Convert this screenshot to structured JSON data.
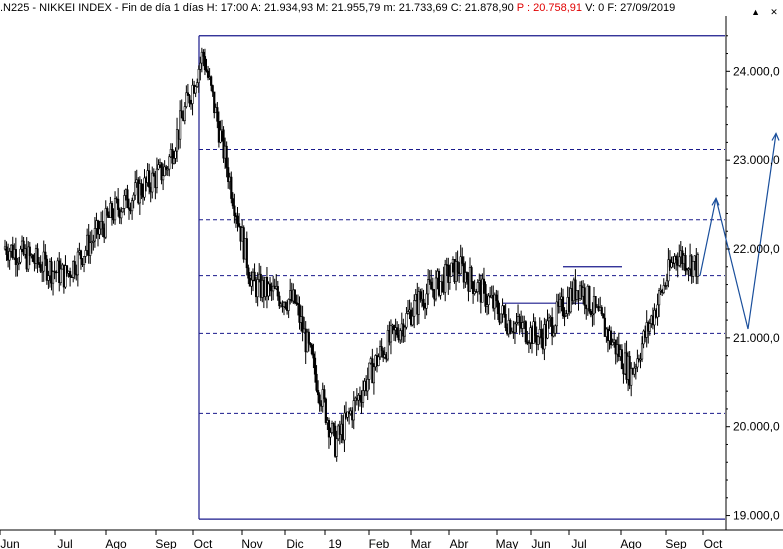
{
  "header": {
    "symbol": ".N225 - NIKKEI INDEX - Fin de día 1 días",
    "high": "H: 17:00",
    "open": "A: 21.934,93",
    "max": "M: 21.955,79",
    "min": "m: 21.733,69",
    "close": "C: 21.878,90",
    "p": "P : 20.758,91",
    "v": "V: 0",
    "date": "F: 27/09/2019"
  },
  "window_buttons": {
    "minimize": "▲",
    "close": "✕"
  },
  "colors": {
    "box": "#1a1a8c",
    "level": "#1a1a8c",
    "candle": "#000000",
    "projection": "#1a4f9c",
    "highlight": "#e00000"
  },
  "chart_data": {
    "type": "candlestick",
    "title": "",
    "xlabel": "",
    "ylabel": "",
    "ylim": [
      18950,
      24600
    ],
    "x_ticks": [
      "Jun",
      "Jul",
      "Ago",
      "Sep",
      "Oct",
      "Nov",
      "Dic",
      "19",
      "Feb",
      "Mar",
      "Abr",
      "May",
      "Jun",
      "Jul",
      "Ago",
      "Sep",
      "Oct"
    ],
    "y_ticks": [
      {
        "value": 19000,
        "label": "19.000,0"
      },
      {
        "value": 20000,
        "label": "20.000,0"
      },
      {
        "value": 21000,
        "label": "21.000,0"
      },
      {
        "value": 22000,
        "label": "22.000,0"
      },
      {
        "value": 23000,
        "label": "23.000,0"
      },
      {
        "value": 24000,
        "label": "24.000,0"
      }
    ],
    "box": {
      "top": 24400,
      "bottom": 18960,
      "start_month": "Oct"
    },
    "levels": [
      23120,
      22330,
      21700,
      21050,
      20150
    ],
    "resistance_segments": [
      {
        "from": "May",
        "to": "Jul",
        "value": 21390
      },
      {
        "from": "Jul",
        "to": "Ago",
        "value": 21800
      }
    ],
    "projection": [
      21700,
      22570,
      21100,
      23300
    ],
    "price_path": [
      {
        "month": "Jun",
        "value": 22000
      },
      {
        "month": "Jul",
        "value": 21700
      },
      {
        "month": "Ago",
        "value": 22450
      },
      {
        "month": "Sep",
        "value": 22900
      },
      {
        "month": "Oct",
        "value": 24200
      },
      {
        "month": "Nov",
        "value": 21600
      },
      {
        "month": "Dic",
        "value": 21400
      },
      {
        "month": "19",
        "value": 19800
      },
      {
        "month": "Feb",
        "value": 20800
      },
      {
        "month": "Mar",
        "value": 21450
      },
      {
        "month": "Abr",
        "value": 21800
      },
      {
        "month": "May",
        "value": 21200
      },
      {
        "month": "Jun",
        "value": 21000
      },
      {
        "month": "Jul",
        "value": 21600
      },
      {
        "month": "Ago",
        "value": 20600
      },
      {
        "month": "Sep",
        "value": 21950
      },
      {
        "month": "Oct",
        "value": 21700
      }
    ]
  }
}
